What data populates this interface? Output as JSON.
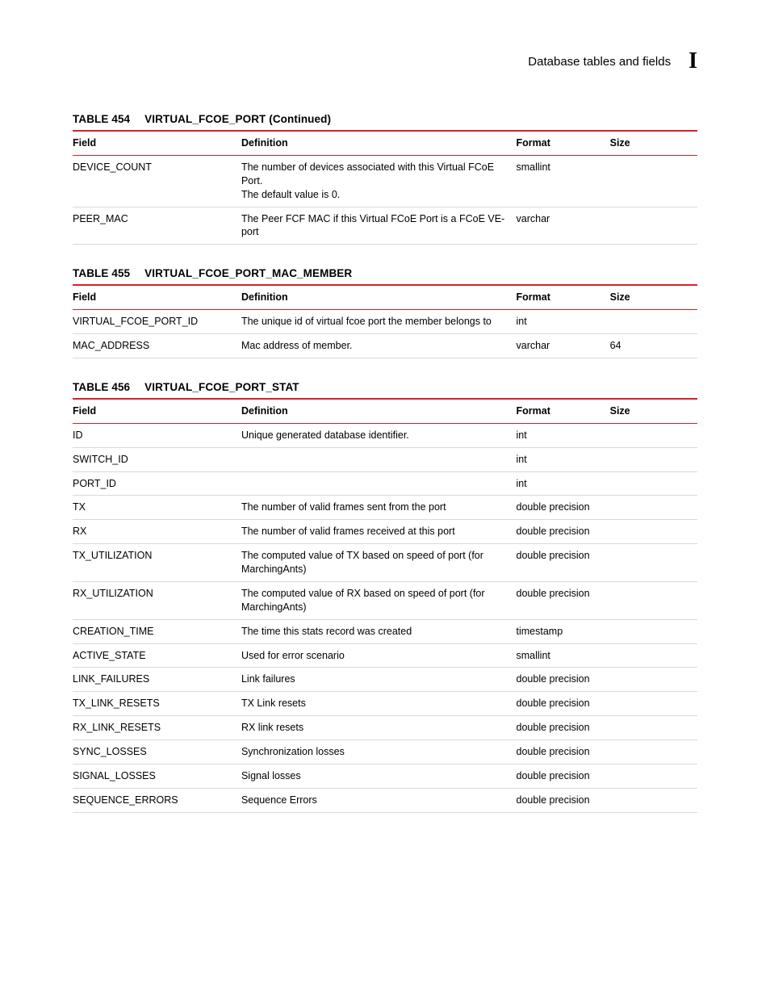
{
  "header": {
    "title": "Database tables and fields",
    "marker": "I"
  },
  "colors": {
    "rule_red": "#d2232a",
    "row_rule": "#d9d9d9",
    "text": "#000000",
    "background": "#ffffff"
  },
  "tables": [
    {
      "number": "TABLE 454",
      "name": "VIRTUAL_FCOE_PORT (Continued)",
      "columns": [
        "Field",
        "Definition",
        "Format",
        "Size"
      ],
      "rows": [
        {
          "field": "DEVICE_COUNT",
          "def_lines": [
            "The number of devices associated with this Virtual FCoE Port.",
            "The default value is 0."
          ],
          "format": "smallint",
          "size": ""
        },
        {
          "field": "PEER_MAC",
          "def_lines": [
            "The Peer FCF MAC if this Virtual FCoE Port is a FCoE VE-port"
          ],
          "format": "varchar",
          "size": ""
        }
      ]
    },
    {
      "number": "TABLE 455",
      "name": "VIRTUAL_FCOE_PORT_MAC_MEMBER",
      "columns": [
        "Field",
        "Definition",
        "Format",
        "Size"
      ],
      "rows": [
        {
          "field": "VIRTUAL_FCOE_PORT_ID",
          "def_lines": [
            "The unique id of virtual fcoe port the member belongs to"
          ],
          "format": "int",
          "size": ""
        },
        {
          "field": "MAC_ADDRESS",
          "def_lines": [
            "Mac address of member."
          ],
          "format": "varchar",
          "size": "64"
        }
      ]
    },
    {
      "number": "TABLE 456",
      "name": "VIRTUAL_FCOE_PORT_STAT",
      "columns": [
        "Field",
        "Definition",
        "Format",
        "Size"
      ],
      "rows": [
        {
          "field": "ID",
          "def_lines": [
            "Unique generated database identifier."
          ],
          "format": "int",
          "size": ""
        },
        {
          "field": "SWITCH_ID",
          "def_lines": [
            ""
          ],
          "format": "int",
          "size": ""
        },
        {
          "field": "PORT_ID",
          "def_lines": [
            ""
          ],
          "format": "int",
          "size": ""
        },
        {
          "field": "TX",
          "def_lines": [
            "The number of valid frames sent from the port"
          ],
          "format": "double precision",
          "size": ""
        },
        {
          "field": "RX",
          "def_lines": [
            "The number of valid frames received at this port"
          ],
          "format": "double precision",
          "size": ""
        },
        {
          "field": "TX_UTILIZATION",
          "def_lines": [
            "The computed value of TX based on speed of port (for MarchingAnts)"
          ],
          "format": "double precision",
          "size": ""
        },
        {
          "field": "RX_UTILIZATION",
          "def_lines": [
            "The computed value of RX based on speed of port (for MarchingAnts)"
          ],
          "format": "double precision",
          "size": ""
        },
        {
          "field": "CREATION_TIME",
          "def_lines": [
            "The time this stats record was created"
          ],
          "format": "timestamp",
          "size": ""
        },
        {
          "field": "ACTIVE_STATE",
          "def_lines": [
            "Used for error scenario"
          ],
          "format": "smallint",
          "size": ""
        },
        {
          "field": "LINK_FAILURES",
          "def_lines": [
            "Link failures"
          ],
          "format": "double precision",
          "size": ""
        },
        {
          "field": "TX_LINK_RESETS",
          "def_lines": [
            "TX Link resets"
          ],
          "format": "double precision",
          "size": ""
        },
        {
          "field": "RX_LINK_RESETS",
          "def_lines": [
            "RX link resets"
          ],
          "format": "double precision",
          "size": ""
        },
        {
          "field": "SYNC_LOSSES",
          "def_lines": [
            "Synchronization losses"
          ],
          "format": "double precision",
          "size": ""
        },
        {
          "field": "SIGNAL_LOSSES",
          "def_lines": [
            "Signal losses"
          ],
          "format": "double precision",
          "size": ""
        },
        {
          "field": "SEQUENCE_ERRORS",
          "def_lines": [
            "Sequence Errors"
          ],
          "format": "double precision",
          "size": ""
        }
      ]
    }
  ]
}
